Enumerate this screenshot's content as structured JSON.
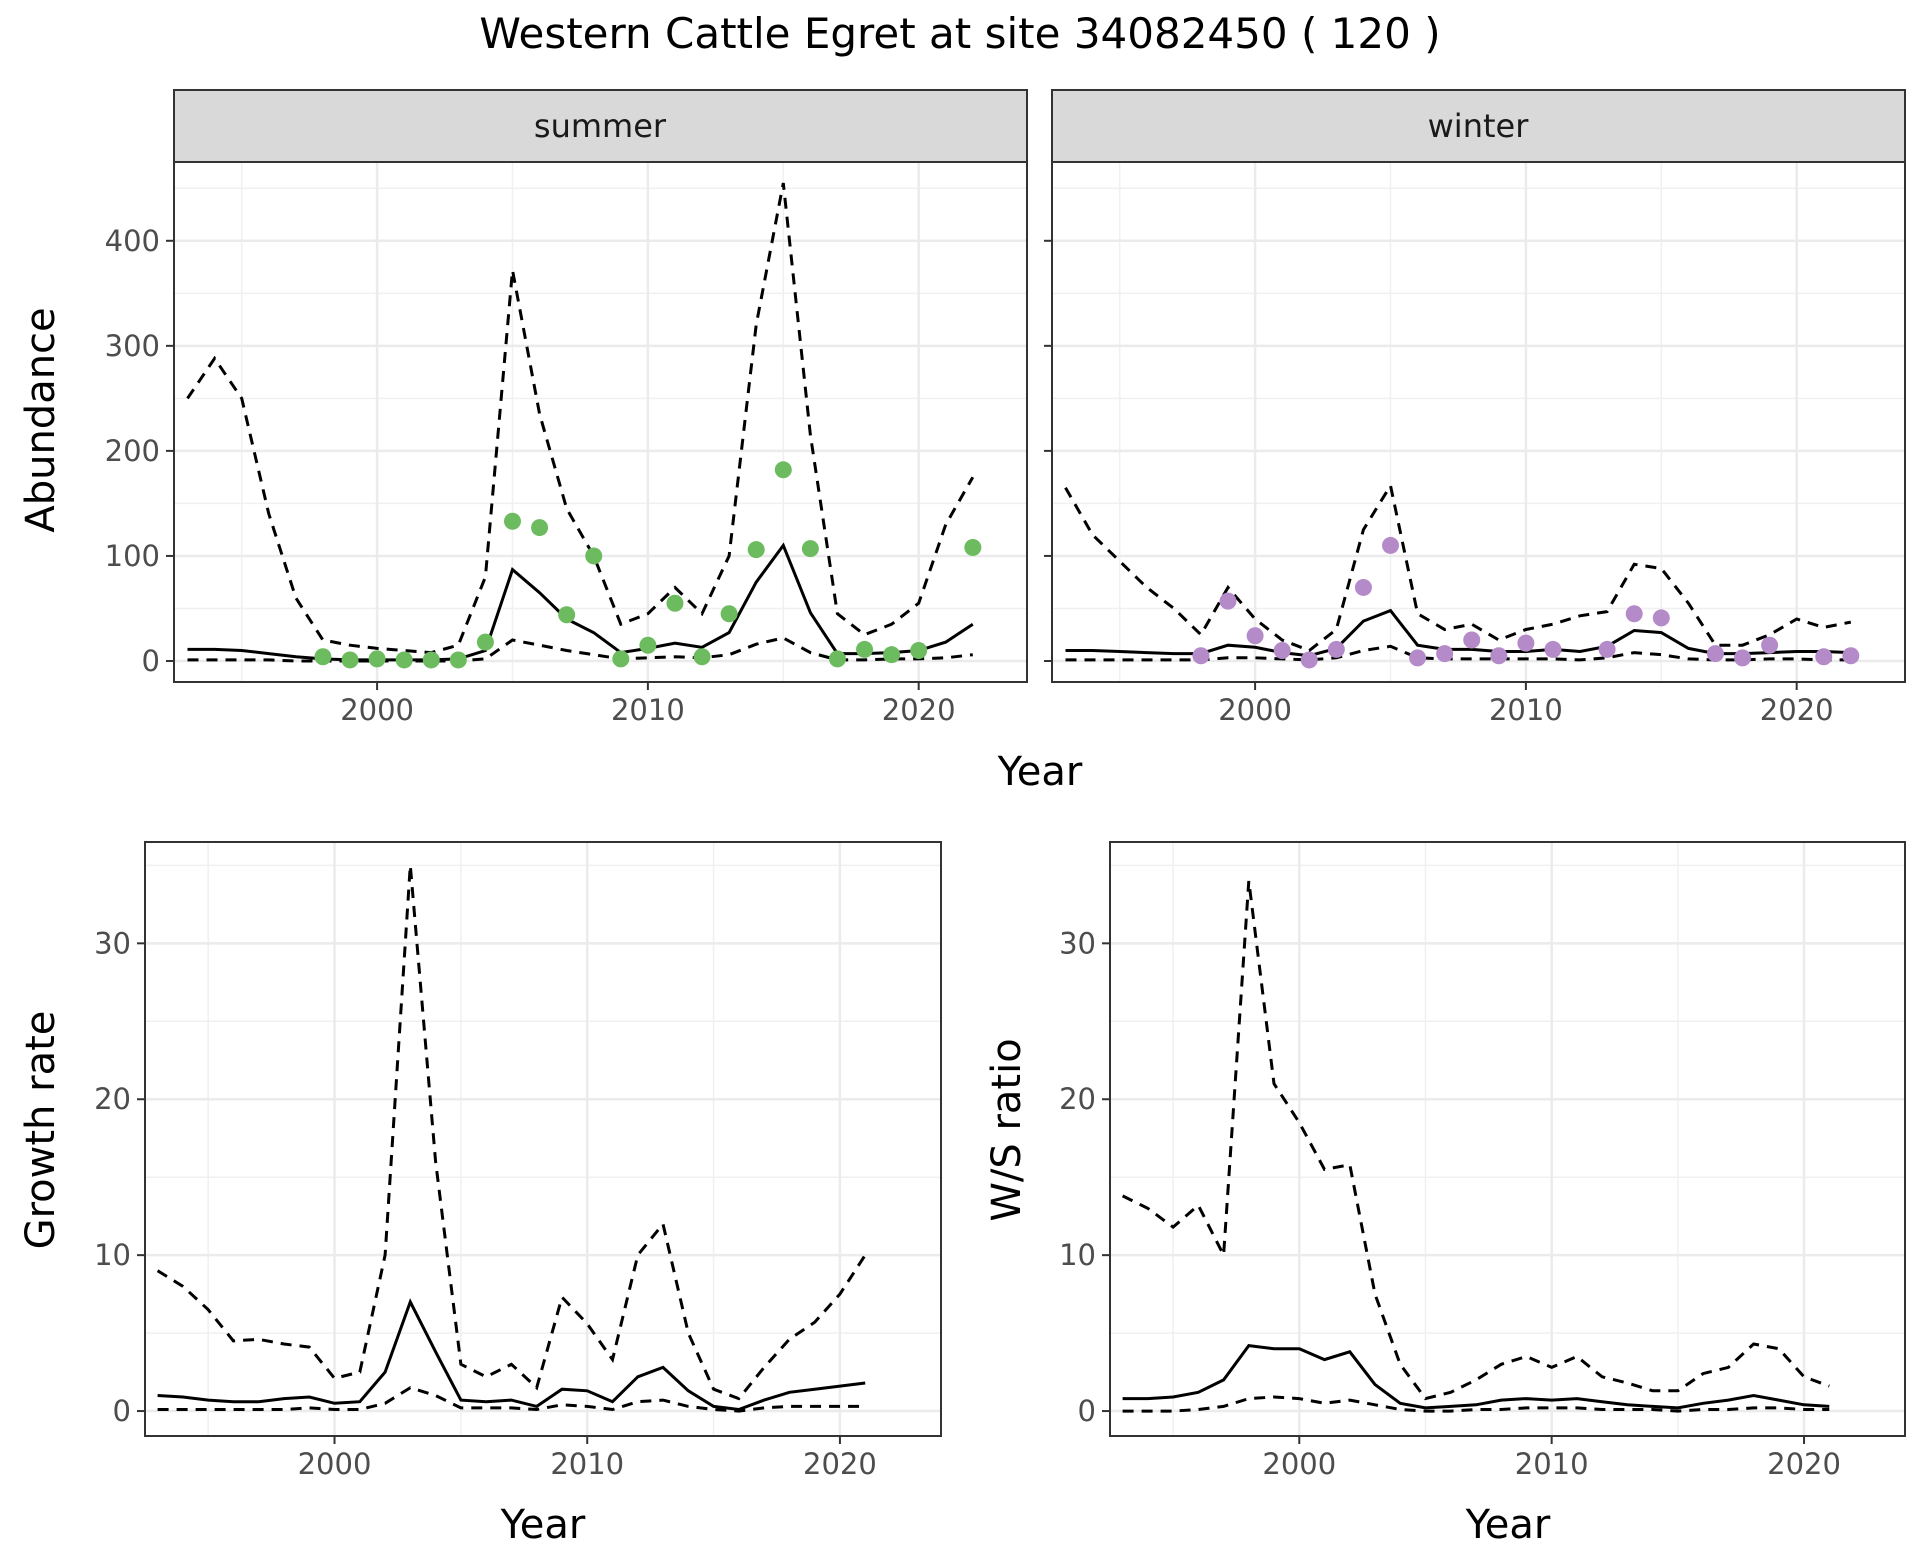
{
  "title": "Western Cattle Egret at site 34082450 ( 120 )",
  "chart_data": [
    {
      "type": "line",
      "panel": "summer",
      "xlabel": "Year",
      "ylabel": "Abundance",
      "xlim": [
        1992.5,
        2024.0
      ],
      "ylim": [
        -20,
        475
      ],
      "xticks": [
        2000,
        2010,
        2020
      ],
      "yticks": [
        0,
        100,
        200,
        300,
        400
      ],
      "grid": true,
      "point_color": "#6dbb5f",
      "observed": {
        "x": [
          1998,
          1999,
          2000,
          2001,
          2002,
          2003,
          2004,
          2005,
          2006,
          2007,
          2008,
          2009,
          2010,
          2011,
          2012,
          2013,
          2014,
          2015,
          2016,
          2017,
          2018,
          2019,
          2020,
          2022
        ],
        "y": [
          4,
          1,
          2,
          1,
          1,
          1,
          18,
          133,
          127,
          44,
          100,
          2,
          15,
          55,
          4,
          45,
          106,
          182,
          107,
          2,
          11,
          6,
          10,
          108
        ]
      },
      "estimate": {
        "x": [
          1993,
          1994,
          1995,
          1996,
          1997,
          1998,
          1999,
          2000,
          2001,
          2002,
          2003,
          2004,
          2005,
          2006,
          2007,
          2008,
          2009,
          2010,
          2011,
          2012,
          2013,
          2014,
          2015,
          2016,
          2017,
          2018,
          2019,
          2020,
          2021,
          2022
        ],
        "y": [
          11,
          11,
          10,
          7,
          4,
          2,
          1,
          1,
          1,
          1,
          2,
          10,
          87,
          65,
          40,
          27,
          8,
          12,
          17,
          13,
          27,
          75,
          110,
          46,
          7,
          7,
          8,
          10,
          18,
          35
        ]
      },
      "upper": {
        "x": [
          1993,
          1994,
          1995,
          1996,
          1997,
          1998,
          1999,
          2000,
          2001,
          2002,
          2003,
          2004,
          2005,
          2006,
          2007,
          2008,
          2009,
          2010,
          2011,
          2012,
          2013,
          2014,
          2015,
          2016,
          2017,
          2018,
          2019,
          2020,
          2021,
          2022
        ],
        "y": [
          250,
          288,
          250,
          140,
          60,
          20,
          15,
          12,
          10,
          8,
          15,
          80,
          372,
          235,
          145,
          100,
          35,
          45,
          70,
          45,
          100,
          320,
          455,
          215,
          45,
          25,
          35,
          55,
          130,
          175
        ]
      },
      "lower": {
        "x": [
          1993,
          1994,
          1995,
          1996,
          1997,
          1998,
          1999,
          2000,
          2001,
          2002,
          2003,
          2004,
          2005,
          2006,
          2007,
          2008,
          2009,
          2010,
          2011,
          2012,
          2013,
          2014,
          2015,
          2016,
          2017,
          2018,
          2019,
          2020,
          2021,
          2022
        ],
        "y": [
          1,
          1,
          1,
          1,
          0,
          0,
          0,
          0,
          0,
          0,
          0,
          2,
          20,
          15,
          10,
          6,
          2,
          3,
          4,
          3,
          6,
          16,
          22,
          8,
          1,
          1,
          2,
          2,
          3,
          6
        ]
      }
    },
    {
      "type": "line",
      "panel": "winter",
      "xlabel": "Year",
      "ylabel": "Abundance",
      "xlim": [
        1992.5,
        2024.0
      ],
      "ylim": [
        -20,
        475
      ],
      "xticks": [
        2000,
        2010,
        2020
      ],
      "yticks": [
        0,
        100,
        200,
        300,
        400
      ],
      "grid": true,
      "point_color": "#b48ac8",
      "observed": {
        "x": [
          1998,
          1999,
          2000,
          2001,
          2002,
          2003,
          2004,
          2005,
          2006,
          2007,
          2008,
          2009,
          2010,
          2011,
          2013,
          2014,
          2015,
          2017,
          2018,
          2019,
          2021,
          2022
        ],
        "y": [
          5,
          57,
          24,
          10,
          1,
          11,
          70,
          110,
          3,
          7,
          20,
          5,
          17,
          11,
          11,
          45,
          41,
          7,
          3,
          15,
          4,
          5
        ]
      },
      "estimate": {
        "x": [
          1993,
          1994,
          1995,
          1996,
          1997,
          1998,
          1999,
          2000,
          2001,
          2002,
          2003,
          2004,
          2005,
          2006,
          2007,
          2008,
          2009,
          2010,
          2011,
          2012,
          2013,
          2014,
          2015,
          2016,
          2017,
          2018,
          2019,
          2020,
          2021,
          2022
        ],
        "y": [
          10,
          10,
          9,
          8,
          7,
          7,
          15,
          13,
          8,
          5,
          12,
          38,
          48,
          15,
          11,
          11,
          9,
          9,
          11,
          9,
          14,
          29,
          27,
          12,
          7,
          7,
          8,
          9,
          9,
          8
        ]
      },
      "upper": {
        "x": [
          1993,
          1994,
          1995,
          1996,
          1997,
          1998,
          1999,
          2000,
          2001,
          2002,
          2003,
          2004,
          2005,
          2006,
          2007,
          2008,
          2009,
          2010,
          2011,
          2012,
          2013,
          2014,
          2015,
          2016,
          2017,
          2018,
          2019,
          2020,
          2021,
          2022
        ],
        "y": [
          165,
          120,
          95,
          70,
          50,
          25,
          70,
          40,
          20,
          10,
          30,
          125,
          167,
          45,
          30,
          35,
          20,
          30,
          35,
          43,
          47,
          92,
          88,
          55,
          15,
          15,
          25,
          40,
          32,
          37
        ]
      },
      "lower": {
        "x": [
          1993,
          1994,
          1995,
          1996,
          1997,
          1998,
          1999,
          2000,
          2001,
          2002,
          2003,
          2004,
          2005,
          2006,
          2007,
          2008,
          2009,
          2010,
          2011,
          2012,
          2013,
          2014,
          2015,
          2016,
          2017,
          2018,
          2019,
          2020,
          2021,
          2022
        ],
        "y": [
          1,
          1,
          1,
          1,
          1,
          1,
          3,
          3,
          2,
          1,
          3,
          10,
          14,
          3,
          2,
          2,
          2,
          2,
          2,
          1,
          3,
          8,
          6,
          2,
          1,
          1,
          2,
          2,
          1,
          1
        ]
      }
    },
    {
      "type": "line",
      "panel": "growth",
      "xlabel": "Year",
      "ylabel": "Growth rate",
      "xlim": [
        1992.5,
        2024.0
      ],
      "ylim": [
        -1.6,
        36.5
      ],
      "xticks": [
        2000,
        2010,
        2020
      ],
      "yticks": [
        0,
        10,
        20,
        30
      ],
      "grid": true,
      "estimate": {
        "x": [
          1993,
          1994,
          1995,
          1996,
          1997,
          1998,
          1999,
          2000,
          2001,
          2002,
          2003,
          2004,
          2005,
          2006,
          2007,
          2008,
          2009,
          2010,
          2011,
          2012,
          2013,
          2014,
          2015,
          2016,
          2017,
          2018,
          2019,
          2020,
          2021
        ],
        "y": [
          1.0,
          0.9,
          0.7,
          0.6,
          0.6,
          0.8,
          0.9,
          0.5,
          0.6,
          2.5,
          7.0,
          3.8,
          0.7,
          0.6,
          0.7,
          0.3,
          1.4,
          1.3,
          0.6,
          2.2,
          2.8,
          1.3,
          0.3,
          0.1,
          0.7,
          1.2,
          1.4,
          1.6,
          1.8
        ]
      },
      "upper": {
        "x": [
          1993,
          1994,
          1995,
          1996,
          1997,
          1998,
          1999,
          2000,
          2001,
          2002,
          2003,
          2004,
          2005,
          2006,
          2007,
          2008,
          2009,
          2010,
          2011,
          2012,
          2013,
          2014,
          2015,
          2016,
          2017,
          2018,
          2019,
          2020,
          2021
        ],
        "y": [
          9.0,
          8.0,
          6.5,
          4.5,
          4.6,
          4.3,
          4.1,
          2.1,
          2.5,
          10.0,
          35.0,
          16.0,
          3.0,
          2.2,
          3.0,
          1.5,
          7.3,
          5.6,
          3.3,
          10.0,
          12.0,
          5.0,
          1.4,
          0.8,
          2.8,
          4.6,
          5.7,
          7.5,
          10.0
        ]
      },
      "lower": {
        "x": [
          1993,
          1994,
          1995,
          1996,
          1997,
          1998,
          1999,
          2000,
          2001,
          2002,
          2003,
          2004,
          2005,
          2006,
          2007,
          2008,
          2009,
          2010,
          2011,
          2012,
          2013,
          2014,
          2015,
          2016,
          2017,
          2018,
          2019,
          2020,
          2021
        ],
        "y": [
          0.1,
          0.1,
          0.1,
          0.1,
          0.1,
          0.1,
          0.2,
          0.1,
          0.1,
          0.5,
          1.5,
          1.0,
          0.2,
          0.2,
          0.2,
          0.1,
          0.4,
          0.3,
          0.1,
          0.6,
          0.7,
          0.3,
          0.1,
          0.0,
          0.2,
          0.3,
          0.3,
          0.3,
          0.3
        ]
      }
    },
    {
      "type": "line",
      "panel": "ratio",
      "xlabel": "Year",
      "ylabel": "W/S ratio",
      "xlim": [
        1992.5,
        2024.0
      ],
      "ylim": [
        -1.6,
        36.5
      ],
      "xticks": [
        2000,
        2010,
        2020
      ],
      "yticks": [
        0,
        10,
        20,
        30
      ],
      "grid": true,
      "estimate": {
        "x": [
          1993,
          1994,
          1995,
          1996,
          1997,
          1998,
          1999,
          2000,
          2001,
          2002,
          2003,
          2004,
          2005,
          2006,
          2007,
          2008,
          2009,
          2010,
          2011,
          2012,
          2013,
          2014,
          2015,
          2016,
          2017,
          2018,
          2019,
          2020,
          2021
        ],
        "y": [
          0.8,
          0.8,
          0.9,
          1.2,
          2.0,
          4.2,
          4.0,
          4.0,
          3.3,
          3.8,
          1.7,
          0.5,
          0.2,
          0.3,
          0.4,
          0.7,
          0.8,
          0.7,
          0.8,
          0.6,
          0.4,
          0.3,
          0.2,
          0.5,
          0.7,
          1.0,
          0.7,
          0.4,
          0.3
        ]
      },
      "upper": {
        "x": [
          1993,
          1994,
          1995,
          1996,
          1997,
          1998,
          1999,
          2000,
          2001,
          2002,
          2003,
          2004,
          2005,
          2006,
          2007,
          2008,
          2009,
          2010,
          2011,
          2012,
          2013,
          2014,
          2015,
          2016,
          2017,
          2018,
          2019,
          2020,
          2021
        ],
        "y": [
          13.8,
          13.0,
          11.8,
          13.2,
          10.0,
          34.0,
          21.0,
          18.5,
          15.5,
          15.8,
          7.5,
          3.0,
          0.8,
          1.2,
          2.0,
          3.0,
          3.5,
          2.8,
          3.5,
          2.2,
          1.8,
          1.3,
          1.3,
          2.4,
          2.8,
          4.3,
          4.0,
          2.2,
          1.6
        ]
      },
      "lower": {
        "x": [
          1993,
          1994,
          1995,
          1996,
          1997,
          1998,
          1999,
          2000,
          2001,
          2002,
          2003,
          2004,
          2005,
          2006,
          2007,
          2008,
          2009,
          2010,
          2011,
          2012,
          2013,
          2014,
          2015,
          2016,
          2017,
          2018,
          2019,
          2020,
          2021
        ],
        "y": [
          0.0,
          0.0,
          0.0,
          0.1,
          0.3,
          0.8,
          0.9,
          0.8,
          0.5,
          0.7,
          0.4,
          0.1,
          0.0,
          0.0,
          0.1,
          0.1,
          0.2,
          0.2,
          0.2,
          0.1,
          0.1,
          0.1,
          0.0,
          0.1,
          0.1,
          0.2,
          0.2,
          0.1,
          0.1
        ]
      }
    }
  ]
}
